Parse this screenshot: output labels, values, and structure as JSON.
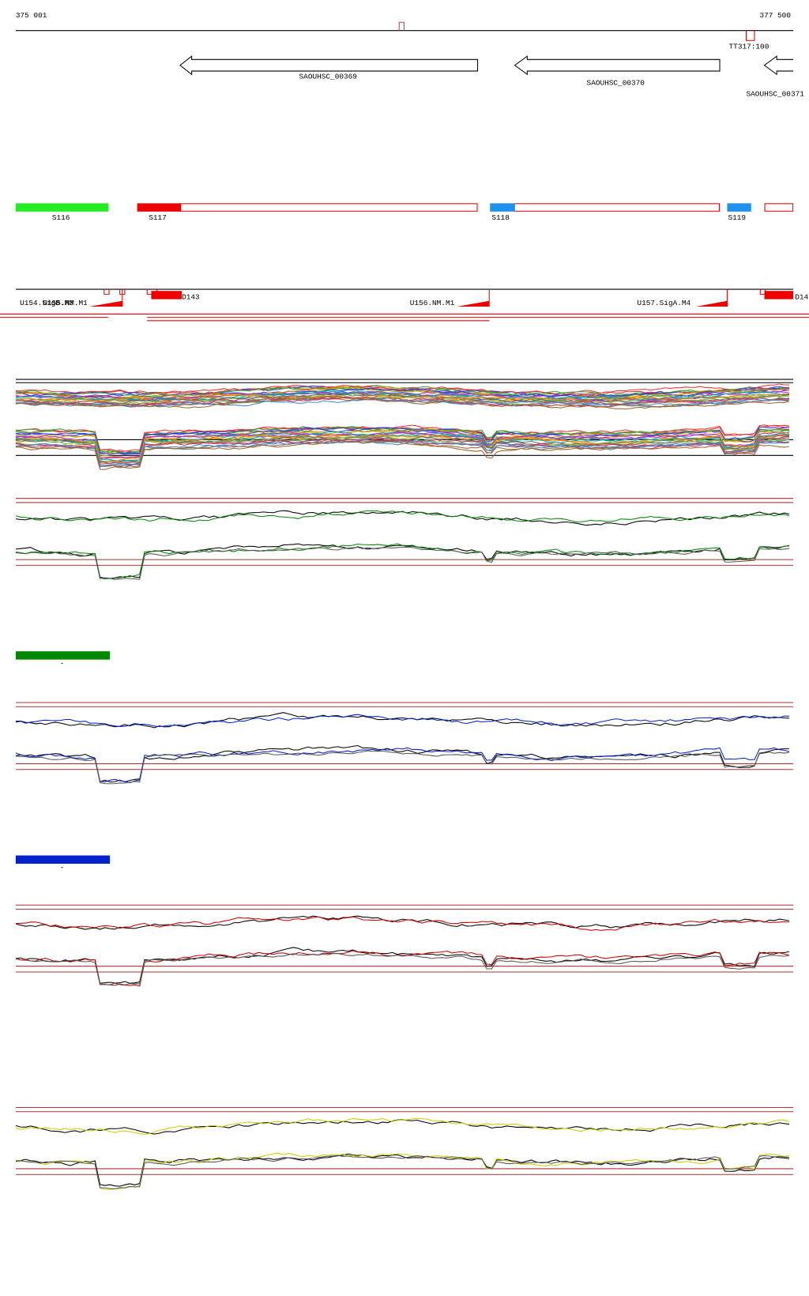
{
  "ruler": {
    "start": "375 001",
    "end": "377 500",
    "marker": "TT317:100"
  },
  "genes": [
    "SAOUHSC_00369",
    "SAOUHSC_00370",
    "SAOUHSC_00371"
  ],
  "segments": [
    "S116",
    "S117",
    "S118",
    "S119"
  ],
  "features": [
    "U154.SigB.M3",
    "U155.NM.M1",
    "D143",
    "U156.NM.M1",
    "U157.SigA.M4",
    "D14"
  ],
  "legends": [
    "-",
    "-"
  ]
}
